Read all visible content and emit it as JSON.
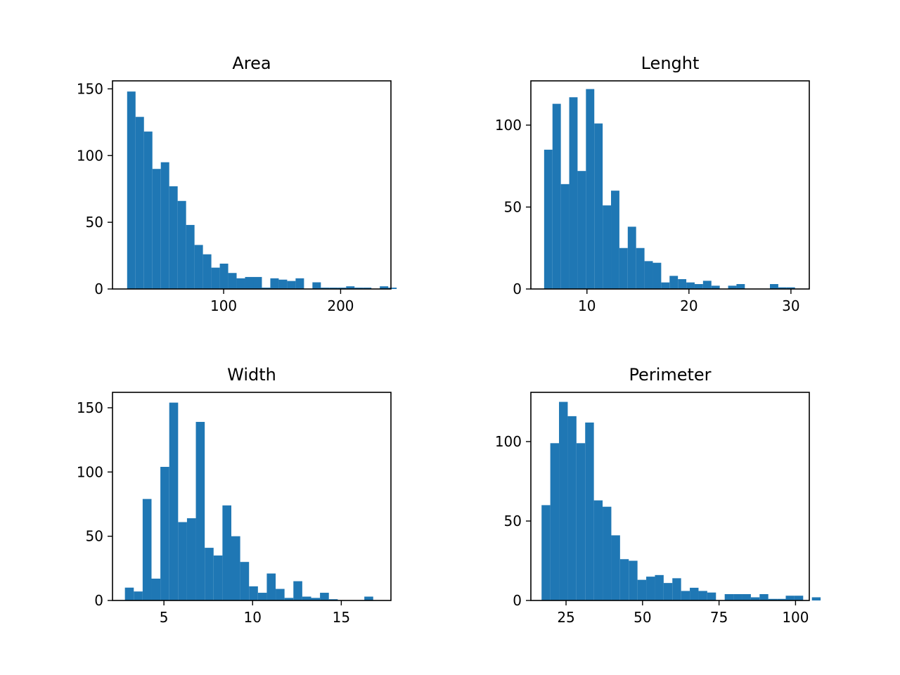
{
  "colors": {
    "bar": "#1f77b4",
    "axis": "#000000",
    "background": "#ffffff"
  },
  "chart_data": [
    {
      "type": "bar",
      "title": "Area",
      "xlabel": "",
      "ylabel": "",
      "bin_start": 17.5,
      "bin_width": 7.2,
      "values": [
        148,
        129,
        118,
        90,
        95,
        77,
        66,
        48,
        33,
        26,
        16,
        19,
        12,
        8,
        9,
        9,
        1,
        8,
        7,
        6,
        8,
        0,
        5,
        1,
        1,
        1,
        2,
        1,
        1,
        0,
        2,
        1
      ],
      "xlim": [
        5,
        243
      ],
      "ylim": [
        0,
        156
      ],
      "xticks": [
        100,
        200
      ],
      "yticks": [
        0,
        50,
        100,
        150
      ],
      "grid": false
    },
    {
      "type": "bar",
      "title": "Lenght",
      "xlabel": "",
      "ylabel": "",
      "bin_start": 5.8,
      "bin_width": 0.82,
      "values": [
        85,
        113,
        64,
        117,
        72,
        122,
        101,
        51,
        60,
        25,
        38,
        25,
        17,
        16,
        4,
        8,
        6,
        4,
        3,
        5,
        2,
        0,
        2,
        3,
        0,
        0,
        0,
        3,
        1,
        1
      ],
      "xlim": [
        4.5,
        31.8
      ],
      "ylim": [
        0,
        127
      ],
      "xticks": [
        10,
        20,
        30
      ],
      "yticks": [
        0,
        50,
        100
      ],
      "grid": false
    },
    {
      "type": "bar",
      "title": "Width",
      "xlabel": "",
      "ylabel": "",
      "bin_start": 2.8,
      "bin_width": 0.5,
      "values": [
        10,
        7,
        79,
        17,
        104,
        154,
        61,
        64,
        139,
        41,
        35,
        74,
        50,
        30,
        11,
        6,
        21,
        9,
        2,
        15,
        3,
        2,
        6,
        1,
        0,
        0,
        0,
        3
      ],
      "xlim": [
        2.1,
        17.8
      ],
      "ylim": [
        0,
        162
      ],
      "xticks": [
        5,
        10,
        15
      ],
      "yticks": [
        0,
        50,
        100,
        150
      ],
      "grid": false
    },
    {
      "type": "bar",
      "title": "Perimeter",
      "xlabel": "",
      "ylabel": "",
      "bin_start": 17.0,
      "bin_width": 2.85,
      "values": [
        60,
        99,
        125,
        116,
        99,
        112,
        63,
        59,
        41,
        26,
        25,
        13,
        15,
        16,
        11,
        14,
        6,
        8,
        6,
        5,
        0,
        4,
        4,
        4,
        2,
        4,
        1,
        1,
        3,
        3,
        0,
        2
      ],
      "xlim": [
        13.5,
        104.5
      ],
      "ylim": [
        0,
        131
      ],
      "xticks": [
        25,
        50,
        75,
        100
      ],
      "yticks": [
        0,
        50,
        100
      ],
      "grid": false
    }
  ]
}
